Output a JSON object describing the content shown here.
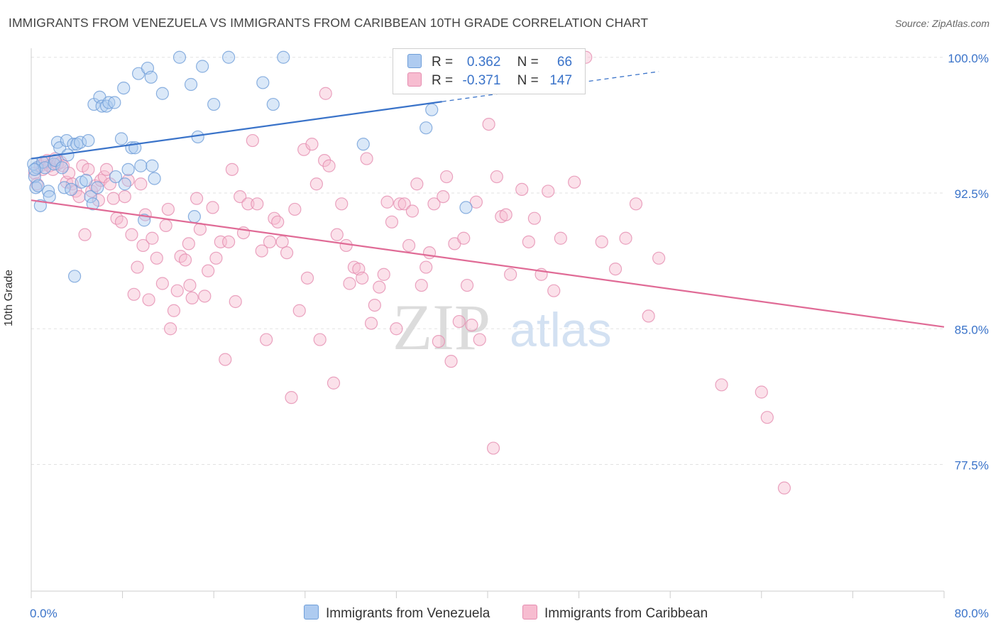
{
  "header": {
    "title": "IMMIGRANTS FROM VENEZUELA VS IMMIGRANTS FROM CARIBBEAN 10TH GRADE CORRELATION CHART",
    "source": "Source: ZipAtlas.com"
  },
  "watermark": {
    "zip": "ZIP",
    "atlas": "atlas"
  },
  "legend": {
    "rows": [
      {
        "r_label": "R =",
        "r_value": "0.362",
        "n_label": "N =",
        "n_value": "66",
        "color": "#aecbf0"
      },
      {
        "r_label": "R =",
        "r_value": "-0.371",
        "n_label": "N =",
        "n_value": "147",
        "color": "#f7bcd0"
      }
    ]
  },
  "bottom_legend": {
    "venezuela": "Immigrants from Venezuela",
    "caribbean": "Immigrants from Caribbean"
  },
  "chart_data": {
    "type": "scatter",
    "title": "IMMIGRANTS FROM VENEZUELA VS IMMIGRANTS FROM CARIBBEAN 10TH GRADE CORRELATION CHART",
    "xlabel": "",
    "ylabel": "10th Grade",
    "xlim": [
      0,
      80
    ],
    "ylim": [
      70.5,
      100.5
    ],
    "x_tick_labels": [
      "0.0%",
      "80.0%"
    ],
    "y_ticks": [
      77.5,
      85.0,
      92.5,
      100.0
    ],
    "y_tick_labels": [
      "77.5%",
      "85.0%",
      "92.5%",
      "100.0%"
    ],
    "grid": true,
    "colors": {
      "venezuela": "#3a73c9",
      "caribbean": "#e06b96",
      "axis_labels": "#3a73c9"
    },
    "series": [
      {
        "name": "Immigrants from Venezuela",
        "color": "#3a73c9",
        "trend": {
          "x0": 0,
          "y0": 94.4,
          "x1": 80,
          "y1": 101.4,
          "solid_to_x": 36
        },
        "points": [
          [
            0.2,
            94.1
          ],
          [
            0.3,
            93.4
          ],
          [
            0.4,
            92.8
          ],
          [
            0.5,
            93.9
          ],
          [
            0.6,
            92.9
          ],
          [
            0.8,
            91.8
          ],
          [
            1.0,
            94.2
          ],
          [
            1.2,
            93.9
          ],
          [
            1.5,
            92.6
          ],
          [
            1.6,
            92.3
          ],
          [
            2.0,
            94.1
          ],
          [
            2.1,
            94.3
          ],
          [
            2.3,
            95.3
          ],
          [
            2.5,
            95.0
          ],
          [
            2.7,
            93.9
          ],
          [
            2.9,
            92.8
          ],
          [
            3.1,
            95.4
          ],
          [
            3.2,
            94.6
          ],
          [
            3.5,
            92.7
          ],
          [
            3.7,
            95.2
          ],
          [
            3.8,
            87.9
          ],
          [
            4.0,
            95.2
          ],
          [
            4.3,
            95.3
          ],
          [
            4.4,
            93.1
          ],
          [
            4.8,
            93.2
          ],
          [
            5.0,
            95.4
          ],
          [
            5.2,
            92.3
          ],
          [
            5.4,
            91.9
          ],
          [
            5.5,
            97.4
          ],
          [
            5.8,
            92.8
          ],
          [
            6.0,
            97.8
          ],
          [
            6.2,
            97.3
          ],
          [
            6.6,
            97.3
          ],
          [
            6.8,
            97.5
          ],
          [
            7.3,
            97.5
          ],
          [
            7.4,
            93.4
          ],
          [
            7.9,
            95.5
          ],
          [
            8.1,
            98.3
          ],
          [
            8.2,
            93.0
          ],
          [
            8.5,
            93.8
          ],
          [
            8.8,
            95.0
          ],
          [
            9.1,
            95.0
          ],
          [
            9.4,
            99.1
          ],
          [
            9.6,
            94.0
          ],
          [
            9.9,
            91.0
          ],
          [
            10.2,
            99.4
          ],
          [
            10.5,
            98.9
          ],
          [
            10.6,
            94.0
          ],
          [
            10.8,
            93.3
          ],
          [
            11.5,
            98.0
          ],
          [
            13.0,
            100.0
          ],
          [
            14.0,
            98.5
          ],
          [
            14.3,
            91.2
          ],
          [
            14.6,
            95.6
          ],
          [
            15.0,
            99.5
          ],
          [
            16.0,
            97.4
          ],
          [
            17.3,
            100.0
          ],
          [
            20.3,
            98.6
          ],
          [
            21.2,
            97.4
          ],
          [
            22.1,
            100.0
          ],
          [
            29.1,
            95.2
          ],
          [
            34.6,
            96.1
          ],
          [
            35.1,
            97.1
          ],
          [
            38.1,
            91.7
          ],
          [
            39.6,
            99.2
          ],
          [
            0.3,
            93.8
          ]
        ]
      },
      {
        "name": "Immigrants from Caribbean",
        "color": "#e06b96",
        "trend": {
          "x0": 0,
          "y0": 92.1,
          "x1": 80,
          "y1": 85.1
        },
        "points": [
          [
            0.3,
            93.6
          ],
          [
            0.5,
            93.0
          ],
          [
            0.8,
            94.0
          ],
          [
            1.0,
            93.8
          ],
          [
            1.2,
            94.2
          ],
          [
            1.4,
            94.3
          ],
          [
            1.6,
            94.0
          ],
          [
            1.9,
            93.8
          ],
          [
            2.1,
            94.4
          ],
          [
            2.3,
            94.1
          ],
          [
            2.6,
            94.2
          ],
          [
            2.8,
            94.0
          ],
          [
            3.1,
            93.1
          ],
          [
            3.3,
            93.6
          ],
          [
            3.6,
            93.0
          ],
          [
            3.9,
            92.6
          ],
          [
            4.2,
            92.3
          ],
          [
            4.5,
            94.0
          ],
          [
            4.7,
            90.2
          ],
          [
            5.0,
            93.8
          ],
          [
            5.3,
            92.6
          ],
          [
            5.6,
            92.9
          ],
          [
            5.9,
            92.1
          ],
          [
            6.1,
            93.2
          ],
          [
            6.4,
            93.4
          ],
          [
            6.6,
            93.8
          ],
          [
            6.9,
            93.0
          ],
          [
            7.2,
            92.2
          ],
          [
            7.5,
            91.1
          ],
          [
            7.9,
            90.9
          ],
          [
            8.2,
            92.3
          ],
          [
            8.5,
            93.2
          ],
          [
            8.8,
            90.2
          ],
          [
            9.0,
            86.9
          ],
          [
            9.3,
            88.4
          ],
          [
            9.6,
            93.0
          ],
          [
            9.8,
            89.6
          ],
          [
            10.0,
            91.3
          ],
          [
            10.3,
            86.6
          ],
          [
            10.6,
            90.0
          ],
          [
            11.0,
            88.9
          ],
          [
            11.5,
            87.5
          ],
          [
            11.8,
            90.7
          ],
          [
            12.0,
            91.6
          ],
          [
            12.2,
            85.0
          ],
          [
            12.5,
            86.0
          ],
          [
            12.8,
            87.1
          ],
          [
            13.1,
            89.0
          ],
          [
            13.5,
            88.8
          ],
          [
            13.8,
            89.7
          ],
          [
            14.1,
            86.7
          ],
          [
            14.5,
            92.2
          ],
          [
            14.8,
            90.5
          ],
          [
            15.2,
            86.8
          ],
          [
            15.5,
            88.2
          ],
          [
            15.9,
            91.7
          ],
          [
            16.2,
            88.9
          ],
          [
            16.6,
            89.8
          ],
          [
            17.0,
            83.3
          ],
          [
            17.3,
            89.8
          ],
          [
            17.6,
            93.8
          ],
          [
            17.9,
            86.5
          ],
          [
            18.3,
            92.3
          ],
          [
            18.6,
            90.3
          ],
          [
            19.0,
            91.9
          ],
          [
            19.4,
            95.4
          ],
          [
            19.8,
            91.9
          ],
          [
            20.2,
            89.3
          ],
          [
            20.6,
            84.4
          ],
          [
            20.9,
            89.8
          ],
          [
            21.3,
            91.1
          ],
          [
            21.6,
            90.9
          ],
          [
            22.0,
            89.8
          ],
          [
            22.4,
            89.2
          ],
          [
            22.8,
            81.2
          ],
          [
            23.1,
            91.6
          ],
          [
            23.5,
            86.0
          ],
          [
            23.9,
            94.9
          ],
          [
            24.2,
            87.8
          ],
          [
            24.6,
            95.2
          ],
          [
            25.0,
            93.0
          ],
          [
            25.3,
            84.4
          ],
          [
            25.7,
            94.3
          ],
          [
            26.1,
            94.0
          ],
          [
            26.5,
            82.0
          ],
          [
            26.8,
            90.2
          ],
          [
            27.2,
            91.9
          ],
          [
            27.6,
            89.6
          ],
          [
            27.9,
            87.5
          ],
          [
            28.3,
            88.4
          ],
          [
            28.7,
            88.3
          ],
          [
            29.0,
            87.8
          ],
          [
            29.4,
            94.4
          ],
          [
            29.8,
            85.3
          ],
          [
            30.1,
            86.3
          ],
          [
            30.5,
            87.3
          ],
          [
            30.9,
            88.0
          ],
          [
            31.2,
            92.0
          ],
          [
            31.6,
            90.9
          ],
          [
            32.0,
            85.0
          ],
          [
            32.3,
            91.9
          ],
          [
            32.7,
            91.9
          ],
          [
            33.1,
            89.6
          ],
          [
            33.4,
            91.5
          ],
          [
            33.8,
            93.0
          ],
          [
            34.2,
            87.4
          ],
          [
            34.6,
            88.4
          ],
          [
            34.9,
            89.2
          ],
          [
            35.3,
            91.9
          ],
          [
            35.7,
            84.3
          ],
          [
            36.1,
            92.3
          ],
          [
            36.4,
            93.4
          ],
          [
            36.8,
            83.2
          ],
          [
            37.1,
            89.7
          ],
          [
            37.5,
            85.4
          ],
          [
            37.9,
            90.0
          ],
          [
            38.2,
            87.4
          ],
          [
            38.6,
            85.2
          ],
          [
            39.0,
            92.0
          ],
          [
            39.3,
            84.4
          ],
          [
            40.1,
            96.3
          ],
          [
            40.5,
            78.4
          ],
          [
            40.8,
            93.4
          ],
          [
            41.2,
            91.2
          ],
          [
            41.6,
            91.3
          ],
          [
            42.0,
            88.0
          ],
          [
            43.0,
            92.7
          ],
          [
            43.6,
            89.8
          ],
          [
            44.1,
            91.1
          ],
          [
            44.7,
            88.0
          ],
          [
            45.3,
            92.6
          ],
          [
            45.8,
            87.1
          ],
          [
            46.4,
            90.0
          ],
          [
            47.6,
            93.1
          ],
          [
            48.6,
            100.0
          ],
          [
            50.0,
            89.8
          ],
          [
            51.2,
            88.3
          ],
          [
            52.1,
            90.0
          ],
          [
            53.0,
            91.9
          ],
          [
            54.1,
            85.7
          ],
          [
            55.0,
            88.9
          ],
          [
            60.5,
            81.9
          ],
          [
            64.0,
            81.5
          ],
          [
            64.5,
            80.1
          ],
          [
            66.0,
            76.2
          ],
          [
            13.9,
            87.4
          ],
          [
            25.8,
            98.0
          ]
        ]
      }
    ]
  }
}
